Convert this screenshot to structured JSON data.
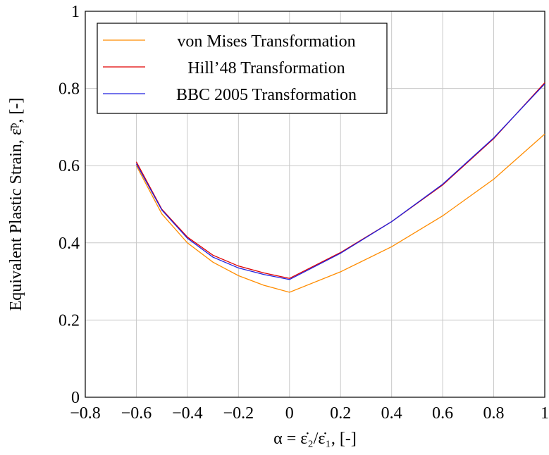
{
  "chart_data": {
    "type": "line",
    "x_label": "α = ε̇₂/ε̇₁, [-]",
    "y_label": "Equivalent Plastic Strain, ε̄ᵖ, [-]",
    "x": [
      -0.6,
      -0.5,
      -0.4,
      -0.3,
      -0.2,
      -0.1,
      0,
      0.2,
      0.4,
      0.6,
      0.8,
      1.0
    ],
    "series": [
      {
        "name": "von Mises Transformation",
        "color": "#ff8c00",
        "values": [
          0.6,
          0.475,
          0.4,
          0.35,
          0.315,
          0.29,
          0.272,
          0.325,
          0.39,
          0.47,
          0.565,
          0.682
        ]
      },
      {
        "name": "Hill’48 Transformation",
        "color": "#e00000",
        "values": [
          0.61,
          0.487,
          0.415,
          0.368,
          0.34,
          0.322,
          0.308,
          0.375,
          0.455,
          0.55,
          0.67,
          0.815
        ]
      },
      {
        "name": "BBC 2005 Transformation",
        "color": "#2020e0",
        "values": [
          0.605,
          0.485,
          0.412,
          0.363,
          0.335,
          0.318,
          0.305,
          0.373,
          0.455,
          0.552,
          0.672,
          0.812
        ]
      }
    ],
    "xlim": [
      -0.8,
      1
    ],
    "ylim": [
      0,
      1
    ],
    "xticks": [
      {
        "value": -0.8,
        "label": "−0.8"
      },
      {
        "value": -0.6,
        "label": "−0.6"
      },
      {
        "value": -0.4,
        "label": "−0.4"
      },
      {
        "value": -0.2,
        "label": "−0.2"
      },
      0,
      0.2,
      0.4,
      0.6,
      0.8,
      1
    ],
    "yticks": [
      0,
      0.2,
      0.4,
      0.6,
      0.8,
      1
    ],
    "grid": true,
    "legend": "top-left"
  }
}
